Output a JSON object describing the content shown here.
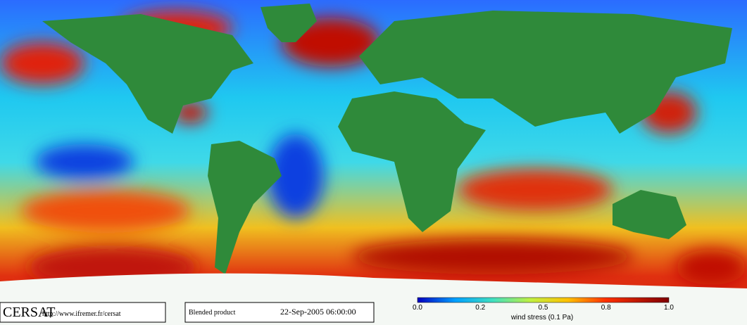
{
  "footer": {
    "logo": "CERSAT",
    "url": "http://www.ifremer.fr/cersat",
    "product": "Blended product",
    "date": "22-Sep-2005 06:00:00"
  },
  "colorbar": {
    "ticks": [
      "0.0",
      "0.2",
      "0.5",
      "0.8",
      "1.0"
    ],
    "label": "wind stress (0.1 Pa)"
  }
}
